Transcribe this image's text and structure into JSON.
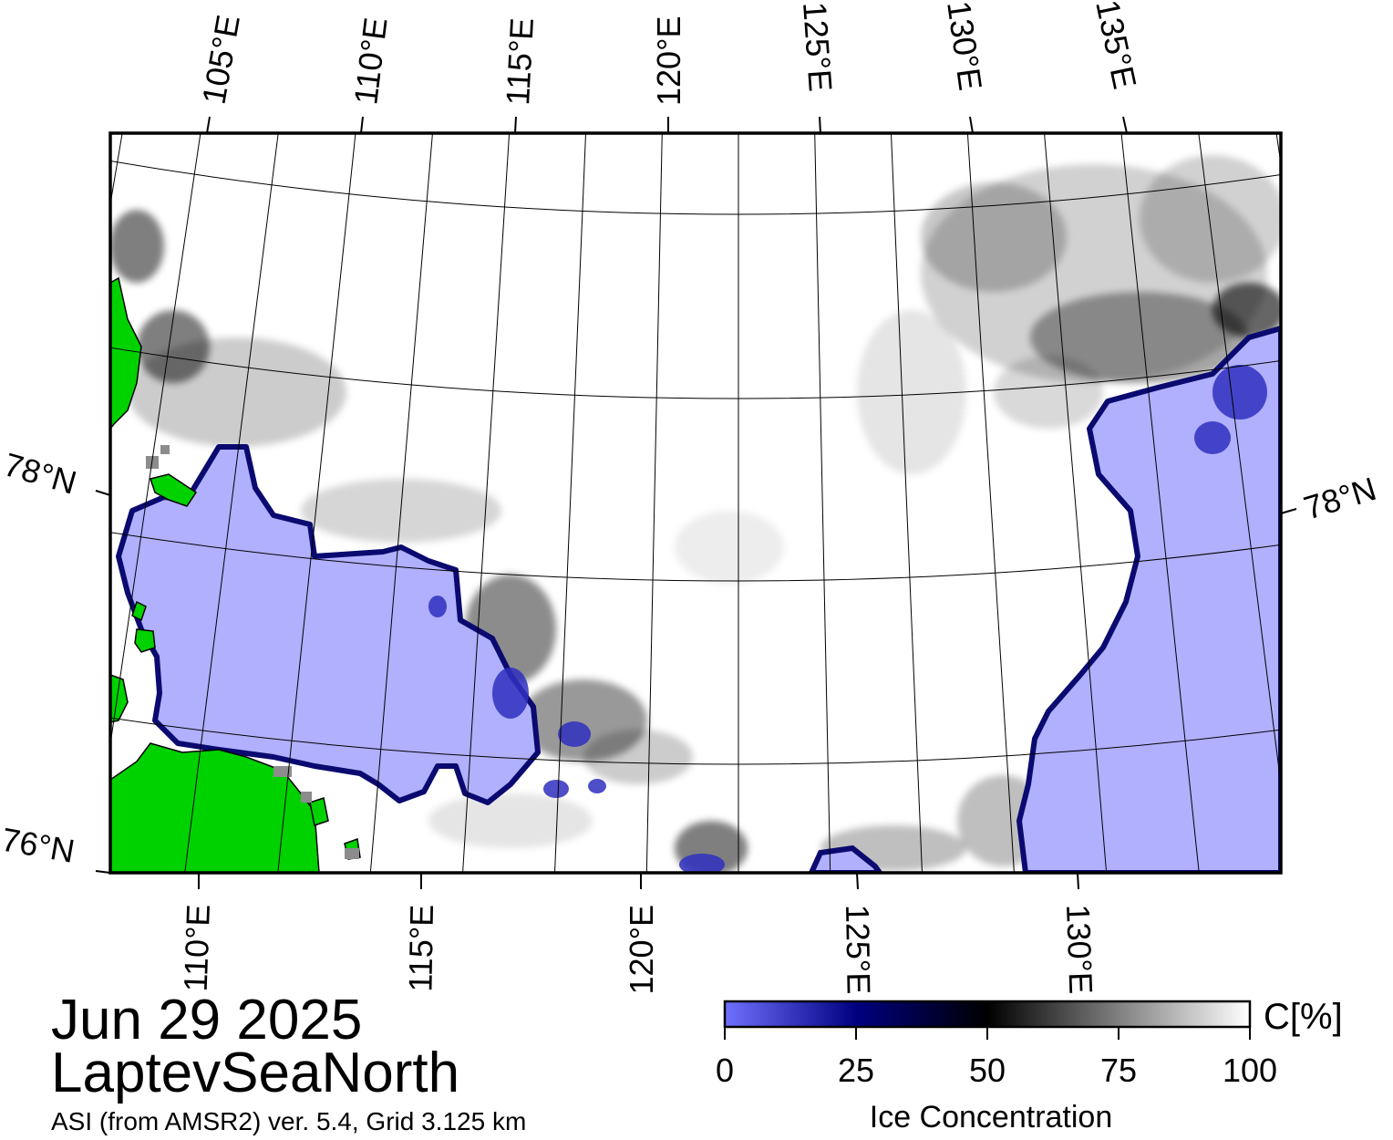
{
  "map": {
    "region_name": "LaptevSeaNorth",
    "date": "Jun 29 2025",
    "product": "ASI (from AMSR2) ver. 5.4,  Grid 3.125 km",
    "top_lon_labels": [
      "105°E",
      "110°E",
      "115°E",
      "120°E",
      "125°E",
      "130°E",
      "135°E"
    ],
    "bottom_lon_labels": [
      "110°E",
      "115°E",
      "120°E",
      "125°E",
      "130°E"
    ],
    "lat_labels_left": [
      "78°N",
      "76°N"
    ],
    "lat_labels_right": [
      "78°N"
    ],
    "colors": {
      "land": "#00d200",
      "coast_mask": "#8c8c8c",
      "open_water": "#b0b0ff",
      "ice_edge": "#0a0a70",
      "high_ice": "#ffffff",
      "grid": "#000000"
    }
  },
  "legend": {
    "title": "Ice Concentration",
    "unit": "C[%]",
    "ticks": [
      "0",
      "25",
      "50",
      "75",
      "100"
    ],
    "tick_values": [
      0,
      25,
      50,
      75,
      100
    ],
    "stops": [
      {
        "value": 0,
        "color": "#7070ff"
      },
      {
        "value": 25,
        "color": "#000080"
      },
      {
        "value": 50,
        "color": "#000000"
      },
      {
        "value": 75,
        "color": "#808080"
      },
      {
        "value": 100,
        "color": "#ffffff"
      }
    ]
  }
}
